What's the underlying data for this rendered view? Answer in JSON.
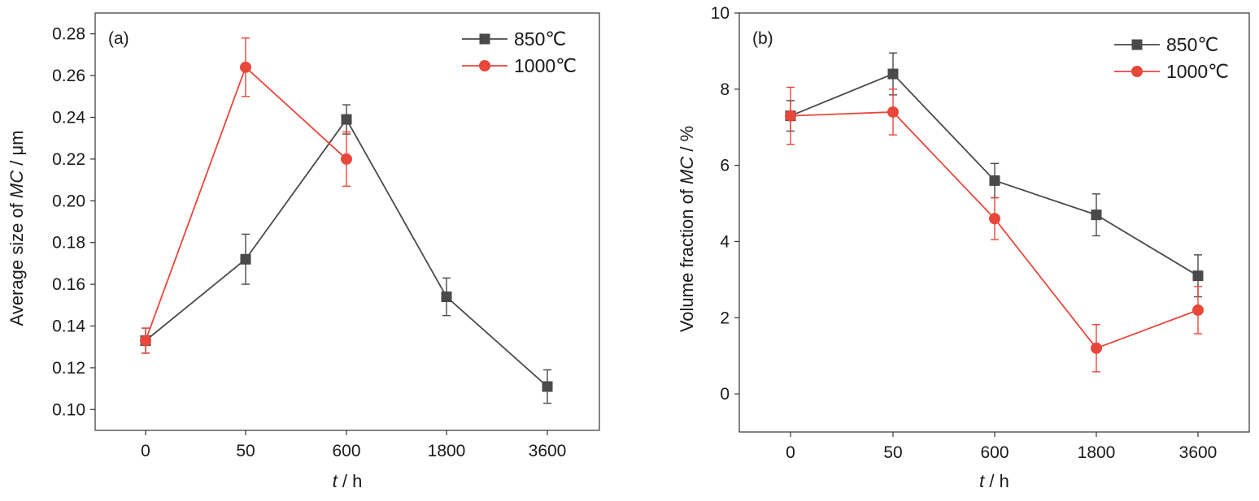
{
  "chart_data": [
    {
      "type": "line",
      "annotation": "(a)",
      "xlabel_italic": "t",
      "xlabel_rest": " / h",
      "ylabel_pre": "Average size of ",
      "ylabel_italic": "MC",
      "ylabel_post": " / μm",
      "categories": [
        "0",
        "50",
        "600",
        "1800",
        "3600"
      ],
      "ylim": [
        0.09,
        0.29
      ],
      "yticks": [
        "0.10",
        "0.12",
        "0.14",
        "0.16",
        "0.18",
        "0.20",
        "0.22",
        "0.24",
        "0.26",
        "0.28"
      ],
      "legend_position": "top-right",
      "series": [
        {
          "name": "850℃",
          "marker": "square",
          "color": "#4a4a4a",
          "x": [
            "0",
            "50",
            "600",
            "1800",
            "3600"
          ],
          "values": [
            0.133,
            0.172,
            0.239,
            0.154,
            0.111
          ],
          "error": [
            0.006,
            0.012,
            0.007,
            0.009,
            0.008
          ]
        },
        {
          "name": "1000℃",
          "marker": "circle",
          "color": "#e8473b",
          "x": [
            "0",
            "50",
            "600"
          ],
          "values": [
            0.133,
            0.264,
            0.22
          ],
          "error": [
            0.006,
            0.014,
            0.013
          ]
        }
      ]
    },
    {
      "type": "line",
      "annotation": "(b)",
      "xlabel_italic": "t",
      "xlabel_rest": " / h",
      "ylabel_pre": "Volume fraction of ",
      "ylabel_italic": "MC",
      "ylabel_post": " / %",
      "categories": [
        "0",
        "50",
        "600",
        "1800",
        "3600"
      ],
      "ylim": [
        -1,
        10
      ],
      "yticks": [
        "0",
        "2",
        "4",
        "6",
        "8",
        "10"
      ],
      "legend_position": "top-right",
      "series": [
        {
          "name": "850℃",
          "marker": "square",
          "color": "#4a4a4a",
          "x": [
            "0",
            "50",
            "600",
            "1800",
            "3600"
          ],
          "values": [
            7.3,
            8.4,
            5.6,
            4.7,
            3.1
          ],
          "error": [
            0.4,
            0.55,
            0.45,
            0.55,
            0.55
          ]
        },
        {
          "name": "1000℃",
          "marker": "circle",
          "color": "#e8473b",
          "x": [
            "0",
            "50",
            "600",
            "1800",
            "3600"
          ],
          "values": [
            7.3,
            7.4,
            4.6,
            1.2,
            2.2
          ],
          "error": [
            0.75,
            0.6,
            0.55,
            0.62,
            0.62
          ]
        }
      ]
    }
  ]
}
